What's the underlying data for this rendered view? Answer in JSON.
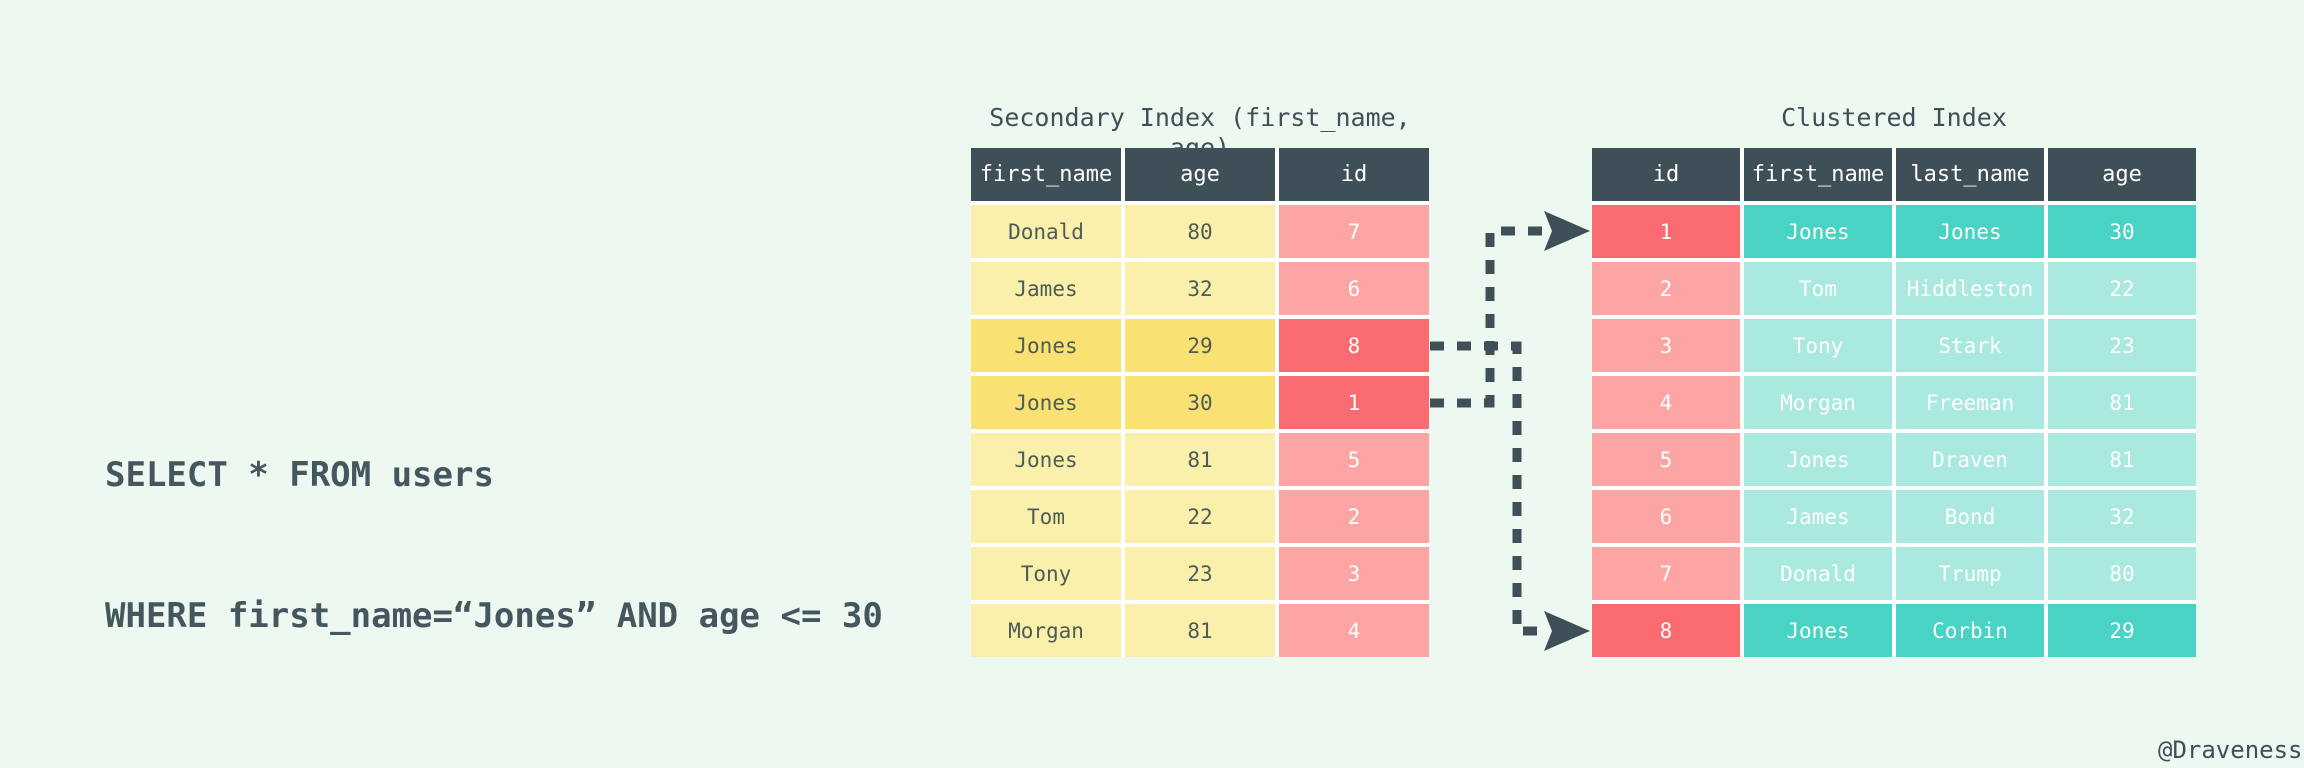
{
  "sql_query": {
    "line1": "SELECT * FROM users",
    "line2": "WHERE first_name=“Jones” AND age <= 30"
  },
  "secondary_index": {
    "title": "Secondary Index (first_name, age)",
    "columns": [
      "first_name",
      "age",
      "id"
    ],
    "col_types": [
      "yellow",
      "yellow",
      "pink"
    ],
    "rows": [
      {
        "cells": [
          "Donald",
          "80",
          "7"
        ],
        "highlight": false
      },
      {
        "cells": [
          "James",
          "32",
          "6"
        ],
        "highlight": false
      },
      {
        "cells": [
          "Jones",
          "29",
          "8"
        ],
        "highlight": true
      },
      {
        "cells": [
          "Jones",
          "30",
          "1"
        ],
        "highlight": true
      },
      {
        "cells": [
          "Jones",
          "81",
          "5"
        ],
        "highlight": false
      },
      {
        "cells": [
          "Tom",
          "22",
          "2"
        ],
        "highlight": false
      },
      {
        "cells": [
          "Tony",
          "23",
          "3"
        ],
        "highlight": false
      },
      {
        "cells": [
          "Morgan",
          "81",
          "4"
        ],
        "highlight": false
      }
    ]
  },
  "clustered_index": {
    "title": "Clustered Index",
    "columns": [
      "id",
      "first_name",
      "last_name",
      "age"
    ],
    "col_types": [
      "pink",
      "teal",
      "teal",
      "teal"
    ],
    "rows": [
      {
        "cells": [
          "1",
          "Jones",
          "Jones",
          "30"
        ],
        "highlight": true
      },
      {
        "cells": [
          "2",
          "Tom",
          "Hiddleston",
          "22"
        ],
        "highlight": false
      },
      {
        "cells": [
          "3",
          "Tony",
          "Stark",
          "23"
        ],
        "highlight": false
      },
      {
        "cells": [
          "4",
          "Morgan",
          "Freeman",
          "81"
        ],
        "highlight": false
      },
      {
        "cells": [
          "5",
          "Jones",
          "Draven",
          "81"
        ],
        "highlight": false
      },
      {
        "cells": [
          "6",
          "James",
          "Bond",
          "32"
        ],
        "highlight": false
      },
      {
        "cells": [
          "7",
          "Donald",
          "Trump",
          "80"
        ],
        "highlight": false
      },
      {
        "cells": [
          "8",
          "Jones",
          "Corbin",
          "29"
        ],
        "highlight": true
      }
    ]
  },
  "arrows": [
    {
      "from": "secondary id 1",
      "to": "clustered row id 1"
    },
    {
      "from": "secondary id 8",
      "to": "clustered row id 8"
    }
  ],
  "watermark": "@Draveness",
  "colors": {
    "background": "#edf8f0",
    "slate": "#3e4f58",
    "gap_white": "#ffffff",
    "yellow": "#faf0ab",
    "yellow_highlight": "#f9e173",
    "pink": "#fda5a4",
    "red_highlight": "#fa6b71",
    "teal": "#a9e9df",
    "teal_highlight": "#48d3c4"
  }
}
